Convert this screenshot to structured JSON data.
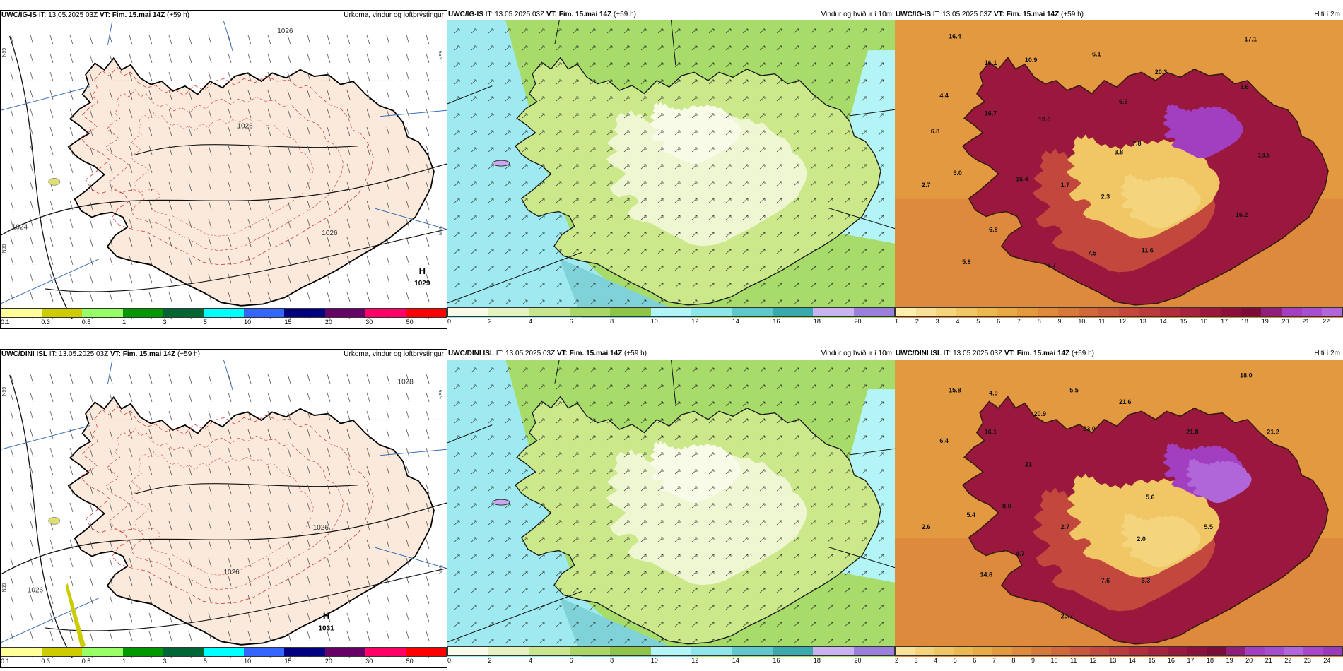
{
  "panels": [
    {
      "id": "top-precip",
      "model": "UWC/IG-IS",
      "it_label": "IT:",
      "it": "13.05.2025 03Z",
      "vt_label": "VT:",
      "vt": "Fim. 15.mai 14Z",
      "lead": "(+59 h)",
      "title": "Úrkoma, vindur og loftþrýstingur",
      "ticks": [
        "0.1",
        "0.3",
        "0.5",
        "1",
        "3",
        "5",
        "10",
        "15",
        "20",
        "30",
        "50"
      ],
      "colors": [
        "#ffff99",
        "#cccc00",
        "#99ff66",
        "#009900",
        "#006633",
        "#00ffff",
        "#3366ff",
        "#000080",
        "#660066",
        "#ff0066",
        "#ff0000"
      ],
      "pressure": {
        "h": "H",
        "hval": "1029"
      },
      "isobars": [
        "1026",
        "1024",
        "1026",
        "1026"
      ],
      "meridian": "N99"
    },
    {
      "id": "top-wind",
      "model": "UWC/IG-IS",
      "it_label": "IT:",
      "it": "13.05.2025 03Z",
      "vt_label": "VT:",
      "vt": "Fim. 15.mai 14Z",
      "lead": "(+59 h)",
      "title": "Vindur og hviður í 10m",
      "ticks": [
        "0",
        "2",
        "4",
        "6",
        "8",
        "10",
        "12",
        "14",
        "16",
        "18",
        "20"
      ],
      "colors": [
        "#f7fbe8",
        "#e4f2c0",
        "#c9e68f",
        "#a9d664",
        "#8ec447",
        "#b3f5f7",
        "#8ee6ea",
        "#5fc8cc",
        "#3aa9ae",
        "#c7b3f0",
        "#9a7fdc"
      ]
    },
    {
      "id": "top-temp",
      "model": "UWC/IG-IS",
      "it_label": "IT:",
      "it": "13.05.2025 03Z",
      "vt_label": "VT:",
      "vt": "Fim. 15.mai 14Z",
      "lead": "(+59 h)",
      "title": "Hiti í 2m",
      "ticks": [
        "1",
        "2",
        "3",
        "4",
        "5",
        "6",
        "7",
        "8",
        "9",
        "10",
        "11",
        "12",
        "13",
        "14",
        "15",
        "16",
        "17",
        "18",
        "19",
        "20",
        "21",
        "22"
      ],
      "colors": [
        "#fcefb0",
        "#f8e29a",
        "#f4d57e",
        "#f0c764",
        "#ecb94e",
        "#e8aa44",
        "#e39a3f",
        "#dd8a3c",
        "#d7793b",
        "#d0683c",
        "#c9583d",
        "#c2483e",
        "#ba3a3e",
        "#b12d3e",
        "#a6223e",
        "#9a183d",
        "#8c103b",
        "#7d0b39",
        "#8e1f7a",
        "#a23ec0",
        "#a54fd0",
        "#b066d8"
      ],
      "labels": [
        "16.4",
        "16.1",
        "10.9",
        "6.1",
        "17.1",
        "4.4",
        "20.3",
        "16.7",
        "19.6",
        "6.6",
        "3.6",
        "6.8",
        "7.8",
        "3.8",
        "18.5",
        "5.0",
        "2.7",
        "16.4",
        "1.7",
        "2.3",
        "16.2",
        "6.8",
        "5.8",
        "3.7",
        "7.5",
        "11.6"
      ]
    },
    {
      "id": "bot-precip",
      "model": "UWC/DINI ISL",
      "it_label": "IT:",
      "it": "13.05.2025 03Z",
      "vt_label": "VT:",
      "vt": "Fim. 15.mai 14Z",
      "lead": "(+59 h)",
      "title": "Úrkoma, vindur og loftþrýstingur",
      "ticks": [
        "0.1",
        "0.3",
        "0.5",
        "1",
        "3",
        "5",
        "10",
        "15",
        "20",
        "30",
        "50"
      ],
      "colors": [
        "#ffff99",
        "#cccc00",
        "#99ff66",
        "#009900",
        "#006633",
        "#00ffff",
        "#3366ff",
        "#000080",
        "#660066",
        "#ff0066",
        "#ff0000"
      ],
      "pressure": {
        "h": "H",
        "hval": "1031"
      },
      "isobars": [
        "1028",
        "1026",
        "1026",
        "1026"
      ],
      "meridian": "N99"
    },
    {
      "id": "bot-wind",
      "model": "UWC/DINI ISL",
      "it_label": "IT:",
      "it": "13.05.2025 03Z",
      "vt_label": "VT:",
      "vt": "Fim. 15.mai 14Z",
      "lead": "(+59 h)",
      "title": "Vindur og hviður í 10m",
      "ticks": [
        "0",
        "2",
        "4",
        "6",
        "8",
        "10",
        "12",
        "14",
        "16",
        "18",
        "20"
      ],
      "colors": [
        "#f7fbe8",
        "#e4f2c0",
        "#c9e68f",
        "#a9d664",
        "#8ec447",
        "#b3f5f7",
        "#8ee6ea",
        "#5fc8cc",
        "#3aa9ae",
        "#c7b3f0",
        "#9a7fdc"
      ]
    },
    {
      "id": "bot-temp",
      "model": "UWC/DINI ISL",
      "it_label": "IT:",
      "it": "13.05.2025 03Z",
      "vt_label": "VT:",
      "vt": "Fim. 15.mai 14Z",
      "lead": "(+59 h)",
      "title": "Hiti í 2m",
      "ticks": [
        "2",
        "3",
        "4",
        "5",
        "6",
        "7",
        "8",
        "9",
        "10",
        "11",
        "12",
        "13",
        "14",
        "15",
        "16",
        "17",
        "18",
        "19",
        "20",
        "21",
        "22",
        "23",
        "24"
      ],
      "colors": [
        "#f8e29a",
        "#f4d57e",
        "#f0c764",
        "#ecb94e",
        "#e8aa44",
        "#e39a3f",
        "#dd8a3c",
        "#d7793b",
        "#d0683c",
        "#c9583d",
        "#c2483e",
        "#ba3a3e",
        "#b12d3e",
        "#a6223e",
        "#9a183d",
        "#8c103b",
        "#7d0b39",
        "#8e1f7a",
        "#a23ec0",
        "#a54fd0",
        "#b066d8",
        "#a848c8",
        "#9a3ab8"
      ],
      "labels": [
        "15.8",
        "4.9",
        "5.5",
        "18.0",
        "21.6",
        "6.4",
        "16.1",
        "20.9",
        "23.0",
        "21.8",
        "21.2",
        "21",
        "8.0",
        "5.4",
        "2.6",
        "2.7",
        "5.6",
        "5.5",
        "2.0",
        "14.6",
        "4.7",
        "7.6",
        "3.3",
        "20.7"
      ]
    }
  ]
}
